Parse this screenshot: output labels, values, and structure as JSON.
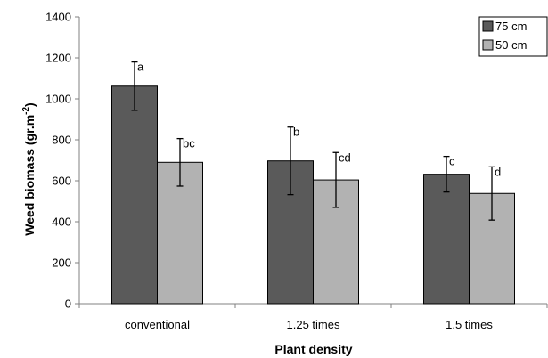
{
  "chart_data": {
    "type": "bar",
    "title": "",
    "xlabel": "Plant density",
    "ylabel_main": "Weed biomass (gr.m",
    "ylabel_sup": "-2",
    "ylabel_tail": ")",
    "ylim": [
      0,
      1400
    ],
    "yticks": [
      0,
      200,
      400,
      600,
      800,
      1000,
      1200,
      1400
    ],
    "ytick_labels": [
      "0",
      "200",
      "400",
      "600",
      "800",
      "1000",
      "1200",
      "1400"
    ],
    "grid": false,
    "legend_position": "top-right",
    "categories": [
      "conventional",
      "1.25 times",
      "1.5 times"
    ],
    "series": [
      {
        "name": "75 cm",
        "color": "#5a5a5a",
        "values": [
          1062,
          697,
          632
        ],
        "error": [
          118,
          165,
          87
        ],
        "labels": [
          "a",
          "b",
          "c"
        ]
      },
      {
        "name": "50 cm",
        "color": "#b2b2b2",
        "values": [
          690,
          604,
          538
        ],
        "error": [
          116,
          134,
          130
        ],
        "labels": [
          "bc",
          "cd",
          "d"
        ]
      }
    ]
  }
}
